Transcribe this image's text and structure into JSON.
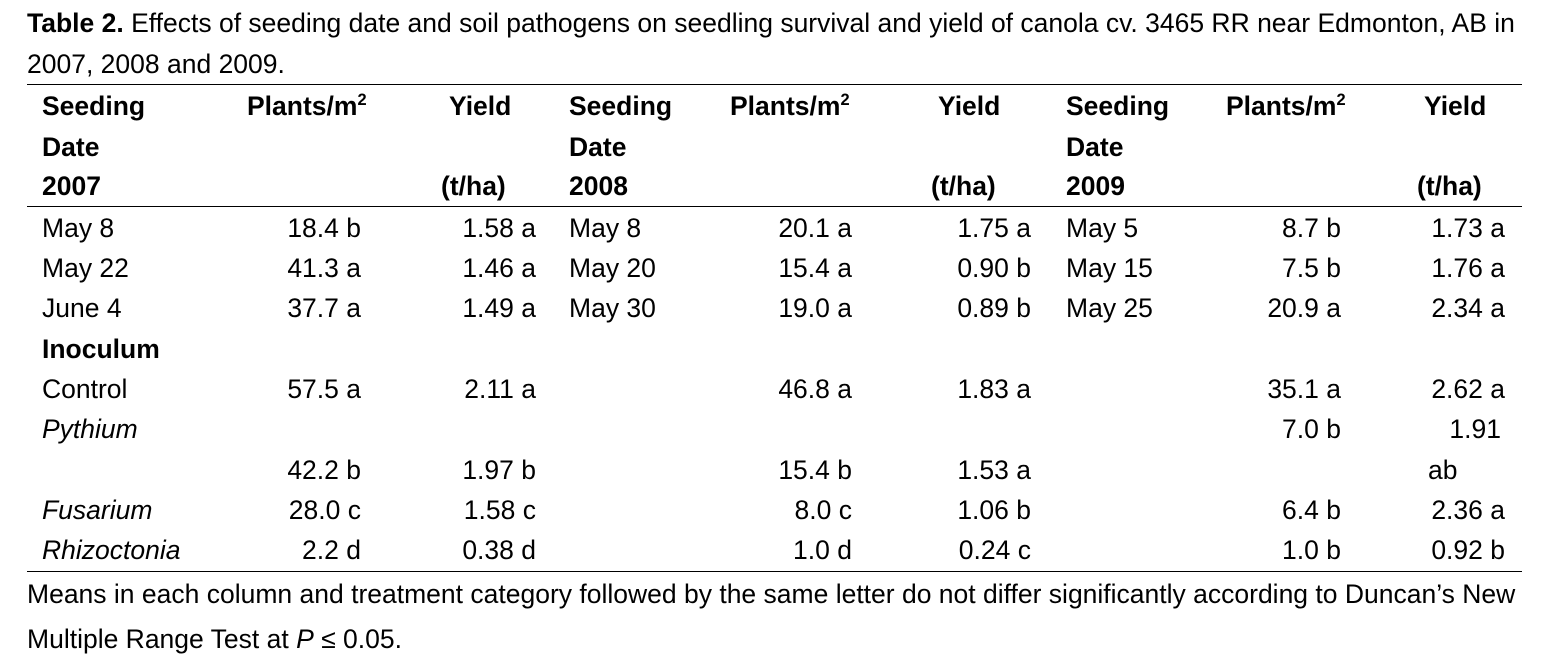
{
  "caption": {
    "label": "Table 2.",
    "text": " Effects of seeding date and soil pathogens on seedling survival and yield of canola cv. 3465 RR near Edmonton, AB in 2007, 2008 and 2009."
  },
  "header": {
    "seeding": "Seeding",
    "date": "Date",
    "y2007": "2007",
    "y2008": "2008",
    "y2009": "2009",
    "plants": "Plants/m",
    "plants_sup": "2",
    "yield": "Yield",
    "yield_unit": "(t/ha)"
  },
  "rows": [
    [
      "May 8",
      "18.4 b",
      "1.58 a",
      "May 8",
      "20.1 a",
      "1.75 a",
      "May 5",
      "8.7 b",
      "1.73 a"
    ],
    [
      "May 22",
      "41.3 a",
      "1.46 a",
      "May 20",
      "15.4 a",
      "0.90 b",
      "May 15",
      "7.5 b",
      "1.76 a"
    ],
    [
      "June 4",
      "37.7 a",
      "1.49 a",
      "May 30",
      "19.0 a",
      "0.89 b",
      "May 25",
      "20.9 a",
      "2.34 a"
    ]
  ],
  "inoculum_label": "Inoculum",
  "inoculum_rows": [
    [
      "Control",
      "57.5 a",
      "2.11 a",
      "",
      "46.8 a",
      "1.83 a",
      "",
      "35.1 a",
      "2.62 a"
    ],
    [
      "Pythium",
      "",
      "",
      "",
      "",
      "",
      "",
      "7.0 b",
      "1.91"
    ],
    [
      "",
      "42.2 b",
      "1.97 b",
      "",
      "15.4 b",
      "1.53 a",
      "",
      "",
      "ab"
    ],
    [
      "Fusarium",
      "28.0 c",
      "1.58 c",
      "",
      "8.0 c",
      "1.06 b",
      "",
      "6.4 b",
      "2.36 a"
    ],
    [
      "Rhizoctonia",
      "2.2 d",
      "0.38 d",
      "",
      "1.0 d",
      "0.24 c",
      "",
      "1.0 b",
      "0.92 b"
    ]
  ],
  "footnote": {
    "before": "Means in each column and treatment category followed by the same letter do not differ significantly according to Duncan’s New Multiple Range Test at ",
    "p": "P",
    "after": " ≤ 0.05."
  }
}
